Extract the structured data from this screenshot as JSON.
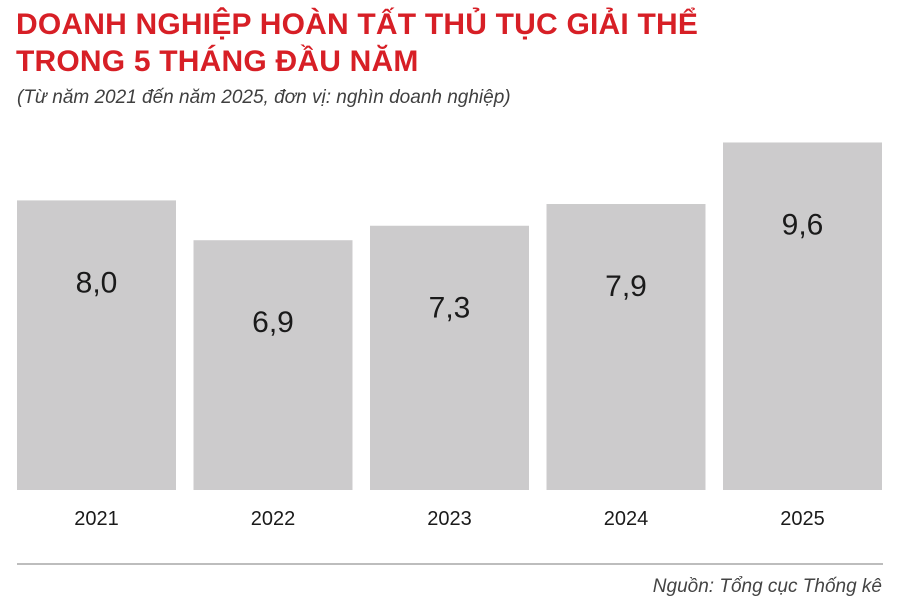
{
  "title_lines": [
    "DOANH NGHIỆP HOÀN TẤT THỦ TỤC GIẢI THỂ",
    "TRONG 5 THÁNG ĐẦU NĂM"
  ],
  "subtitle": "(Từ năm 2021 đến năm 2025, đơn vị: nghìn doanh nghiệp)",
  "source": "Nguồn: Tổng cục Thống kê",
  "colors": {
    "title": "#d71f26",
    "bar": "#cccbcc",
    "text": "#1a1a1a",
    "divider": "#bdbdbd"
  },
  "chart_data": {
    "type": "bar",
    "title": "DOANH NGHIỆP HOÀN TẤT THỦ TỤC GIẢI THỂ TRONG 5 THÁNG ĐẦU NĂM",
    "subtitle": "(Từ năm 2021 đến năm 2025, đơn vị: nghìn doanh nghiệp)",
    "categories": [
      "2021",
      "2022",
      "2023",
      "2024",
      "2025"
    ],
    "values": [
      8.0,
      6.9,
      7.3,
      7.9,
      9.6
    ],
    "value_labels": [
      "8,0",
      "6,9",
      "7,3",
      "7,9",
      "9,6"
    ],
    "xlabel": "",
    "ylabel": "",
    "grid": false,
    "legend": "none",
    "y_axis_shown": false,
    "data_labels": "inside-top"
  }
}
